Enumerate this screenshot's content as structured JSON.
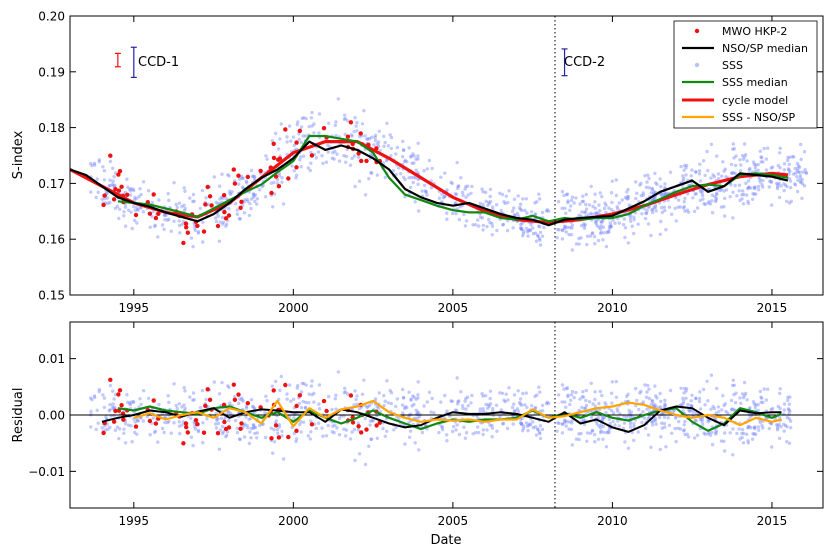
{
  "chart_data": [
    {
      "type": "scatter",
      "panel": "top",
      "ylabel": "S-index",
      "xlim": [
        1993.0,
        2016.6
      ],
      "ylim": [
        0.15,
        0.2
      ],
      "yticks": [
        0.15,
        0.16,
        0.17,
        0.18,
        0.19,
        0.2
      ],
      "yticklabels": [
        "0.15",
        "0.16",
        "0.17",
        "0.18",
        "0.19",
        "0.20"
      ],
      "vline_x": 2008.2,
      "legend_position": "top-right",
      "legend": [
        {
          "label": "MWO HKP-2",
          "kind": "dot",
          "color": "#ee1111"
        },
        {
          "label": "NSO/SP median",
          "kind": "line",
          "color": "#000000"
        },
        {
          "label": "SSS",
          "kind": "dot",
          "color": "#8899ff"
        },
        {
          "label": "SSS median",
          "kind": "line",
          "color": "#118811"
        },
        {
          "label": "cycle model",
          "kind": "line",
          "color": "#ee1111"
        },
        {
          "label": "SSS - NSO/SP",
          "kind": "line",
          "color": "#ffa500"
        }
      ],
      "annotations": [
        {
          "text": "CCD-1",
          "x": 1995.3,
          "y": 0.192
        },
        {
          "text": "CCD-2",
          "x": 2008.7,
          "y": 0.192
        }
      ],
      "errorbars": [
        {
          "x": 1994.5,
          "y": 0.1921,
          "err": 0.0012,
          "color": "#ee1111"
        },
        {
          "x": 1995.0,
          "y": 0.1917,
          "err": 0.0027,
          "color": "#2222aa"
        },
        {
          "x": 2008.5,
          "y": 0.1917,
          "err": 0.0024,
          "color": "#2222aa"
        }
      ],
      "series": [
        {
          "name": "cycle model",
          "color": "#ee1111",
          "x": [
            1993.0,
            1994.0,
            1995.0,
            1996.0,
            1997.0,
            1998.0,
            1999.0,
            2000.0,
            2001.0,
            2002.0,
            2003.0,
            2004.0,
            2005.0,
            2006.0,
            2007.0,
            2008.0,
            2009.0,
            2010.0,
            2011.0,
            2012.0,
            2013.0,
            2014.0,
            2015.0,
            2015.5
          ],
          "y": [
            0.1725,
            0.1695,
            0.1665,
            0.1648,
            0.164,
            0.1665,
            0.171,
            0.1755,
            0.1775,
            0.1775,
            0.1745,
            0.171,
            0.1675,
            0.165,
            0.1635,
            0.163,
            0.1635,
            0.1645,
            0.166,
            0.168,
            0.1698,
            0.1712,
            0.1718,
            0.1715
          ]
        },
        {
          "name": "NSO/SP median",
          "color": "#000000",
          "x": [
            1993.0,
            1993.5,
            1994.0,
            1994.5,
            1995.0,
            1995.5,
            1996.0,
            1996.5,
            1997.0,
            1997.5,
            1998.0,
            1998.5,
            1999.0,
            1999.5,
            2000.0,
            2000.5,
            2001.0,
            2001.5,
            2002.0,
            2002.5,
            2003.0,
            2003.5,
            2004.0,
            2004.5,
            2005.0,
            2005.5,
            2006.0,
            2006.5,
            2007.0,
            2007.5,
            2008.0,
            2008.5,
            2009.0,
            2009.5,
            2010.0,
            2010.5,
            2011.0,
            2011.5,
            2012.0,
            2012.5,
            2013.0,
            2013.5,
            2014.0,
            2014.5,
            2015.0,
            2015.5
          ],
          "y": [
            0.1725,
            0.1715,
            0.1695,
            0.1675,
            0.1665,
            0.1658,
            0.1648,
            0.164,
            0.1632,
            0.1645,
            0.1665,
            0.169,
            0.171,
            0.1725,
            0.1745,
            0.1775,
            0.176,
            0.1768,
            0.176,
            0.1745,
            0.1725,
            0.169,
            0.1675,
            0.1665,
            0.166,
            0.1665,
            0.1655,
            0.1645,
            0.1638,
            0.1635,
            0.1625,
            0.1635,
            0.1638,
            0.164,
            0.1642,
            0.1655,
            0.1668,
            0.1685,
            0.1695,
            0.1705,
            0.1685,
            0.1695,
            0.1718,
            0.1715,
            0.1712,
            0.1705
          ]
        },
        {
          "name": "SSS median",
          "color": "#118811",
          "x": [
            1994.5,
            1995.0,
            1995.5,
            1996.0,
            1996.5,
            1997.0,
            1997.5,
            1998.0,
            1998.5,
            1999.0,
            1999.5,
            2000.0,
            2000.5,
            2001.0,
            2001.5,
            2002.0,
            2002.5,
            2003.0,
            2003.5,
            2004.0,
            2004.5,
            2005.0,
            2005.5,
            2006.0,
            2006.5,
            2007.0,
            2007.5,
            2008.0,
            2008.5,
            2009.0,
            2009.5,
            2010.0,
            2010.5,
            2011.0,
            2011.5,
            2012.0,
            2012.5,
            2013.0,
            2013.5,
            2014.0,
            2014.5,
            2015.0,
            2015.5
          ],
          "y": [
            0.1668,
            0.1665,
            0.1662,
            0.1655,
            0.1648,
            0.164,
            0.1655,
            0.167,
            0.1685,
            0.1698,
            0.172,
            0.174,
            0.1785,
            0.1785,
            0.178,
            0.1775,
            0.1755,
            0.171,
            0.168,
            0.167,
            0.166,
            0.1652,
            0.1648,
            0.1648,
            0.1638,
            0.1635,
            0.1642,
            0.1632,
            0.1638,
            0.1635,
            0.1638,
            0.1638,
            0.1645,
            0.166,
            0.1672,
            0.1685,
            0.1695,
            0.1698,
            0.1695,
            0.1715,
            0.1718,
            0.1715,
            0.171
          ]
        }
      ]
    },
    {
      "type": "scatter",
      "panel": "bottom",
      "xlabel": "Date",
      "ylabel": "Residual",
      "xlim": [
        1993.0,
        2016.6
      ],
      "ylim": [
        -0.0165,
        0.0165
      ],
      "xticks": [
        1995,
        2000,
        2005,
        2010,
        2015
      ],
      "xticklabels": [
        "1995",
        "2000",
        "2005",
        "2010",
        "2015"
      ],
      "yticks": [
        -0.01,
        0.0,
        0.01
      ],
      "yticklabels": [
        "−0.01",
        "0.00",
        "0.01"
      ],
      "vline_x": 2008.2,
      "series": [
        {
          "name": "NSO/SP median residual",
          "color": "#000000",
          "x": [
            1994.0,
            1994.5,
            1995.0,
            1995.5,
            1996.0,
            1996.5,
            1997.0,
            1997.5,
            1998.0,
            1998.5,
            1999.0,
            1999.5,
            2000.0,
            2000.5,
            2001.0,
            2001.5,
            2002.0,
            2002.5,
            2003.0,
            2003.5,
            2004.0,
            2004.5,
            2005.0,
            2005.5,
            2006.0,
            2006.5,
            2007.0,
            2007.5,
            2008.0,
            2008.5,
            2009.0,
            2009.5,
            2010.0,
            2010.5,
            2011.0,
            2011.5,
            2012.0,
            2012.5,
            2013.0,
            2013.5,
            2014.0,
            2014.5,
            2015.0,
            2015.3
          ],
          "y": [
            -0.0012,
            -0.0005,
            0.0,
            0.0008,
            0.0005,
            -0.0003,
            0.0006,
            0.0012,
            -0.0005,
            0.0005,
            0.001,
            0.0008,
            0.0005,
            0.0005,
            -0.0012,
            0.001,
            0.0005,
            -0.0005,
            -0.0015,
            -0.0022,
            -0.0018,
            -0.0005,
            0.0005,
            0.0002,
            0.0002,
            0.0005,
            0.0002,
            -0.0005,
            -0.0012,
            0.0005,
            -0.0015,
            -0.0008,
            -0.0022,
            -0.003,
            -0.0018,
            0.0008,
            0.0015,
            0.0012,
            -0.0005,
            -0.0018,
            0.0008,
            0.0003,
            0.0005,
            0.0005
          ]
        },
        {
          "name": "SSS median residual",
          "color": "#118811",
          "x": [
            1994.5,
            1995.0,
            1995.5,
            1996.0,
            1996.5,
            1997.0,
            1997.5,
            1998.0,
            1998.5,
            1999.0,
            1999.5,
            2000.0,
            2000.5,
            2001.0,
            2001.5,
            2002.0,
            2002.5,
            2003.0,
            2003.5,
            2004.0,
            2004.5,
            2005.0,
            2005.5,
            2006.0,
            2006.5,
            2007.0,
            2007.5,
            2008.0,
            2008.5,
            2009.0,
            2009.5,
            2010.0,
            2010.5,
            2011.0,
            2011.5,
            2012.0,
            2012.5,
            2013.0,
            2013.5,
            2014.0,
            2014.5,
            2015.0,
            2015.3
          ],
          "y": [
            0.0012,
            0.0008,
            0.0015,
            0.0008,
            0.0005,
            0.0002,
            0.0012,
            0.0015,
            0.0005,
            -0.0005,
            0.0005,
            -0.0012,
            0.0008,
            -0.0005,
            -0.0015,
            -0.0005,
            0.0008,
            -0.0005,
            -0.0015,
            -0.0025,
            -0.0015,
            -0.0008,
            -0.0012,
            -0.0008,
            -0.0008,
            -0.0005,
            0.0008,
            -0.0005,
            0.0003,
            -0.0005,
            0.0005,
            -0.0005,
            -0.001,
            0.0,
            0.0008,
            0.0012,
            -0.0012,
            -0.0028,
            -0.0015,
            0.0012,
            0.0005,
            -0.0005,
            0.0002
          ]
        },
        {
          "name": "SSS - NSO/SP",
          "color": "#ffa500",
          "x": [
            1995.0,
            1995.5,
            1996.0,
            1996.5,
            1997.0,
            1997.5,
            1998.0,
            1998.5,
            1999.0,
            1999.5,
            2000.0,
            2000.5,
            2001.0,
            2001.5,
            2002.0,
            2002.5,
            2003.0,
            2003.5,
            2004.0,
            2004.5,
            2005.0,
            2005.5,
            2006.0,
            2006.5,
            2007.0,
            2007.5,
            2008.0,
            2008.5,
            2009.0,
            2009.5,
            2010.0,
            2010.5,
            2011.0,
            2011.5,
            2012.0,
            2012.5,
            2013.0,
            2013.5,
            2014.0,
            2014.5,
            2015.0,
            2015.3
          ],
          "y": [
            -0.0005,
            0.0003,
            -0.0008,
            0.0,
            0.0005,
            -0.0005,
            0.0012,
            0.0005,
            -0.0015,
            0.0025,
            -0.002,
            0.0012,
            -0.0005,
            0.001,
            0.0015,
            0.0025,
            0.0005,
            -0.0005,
            -0.0012,
            -0.0008,
            -0.001,
            -0.0008,
            -0.0012,
            -0.0008,
            -0.0008,
            0.001,
            -0.0005,
            -0.0002,
            0.0005,
            0.0012,
            0.0015,
            0.0022,
            0.0018,
            0.0008,
            0.0,
            -0.0005,
            0.0,
            -0.0005,
            -0.0018,
            -0.0005,
            -0.0012,
            -0.0008
          ]
        }
      ]
    }
  ]
}
